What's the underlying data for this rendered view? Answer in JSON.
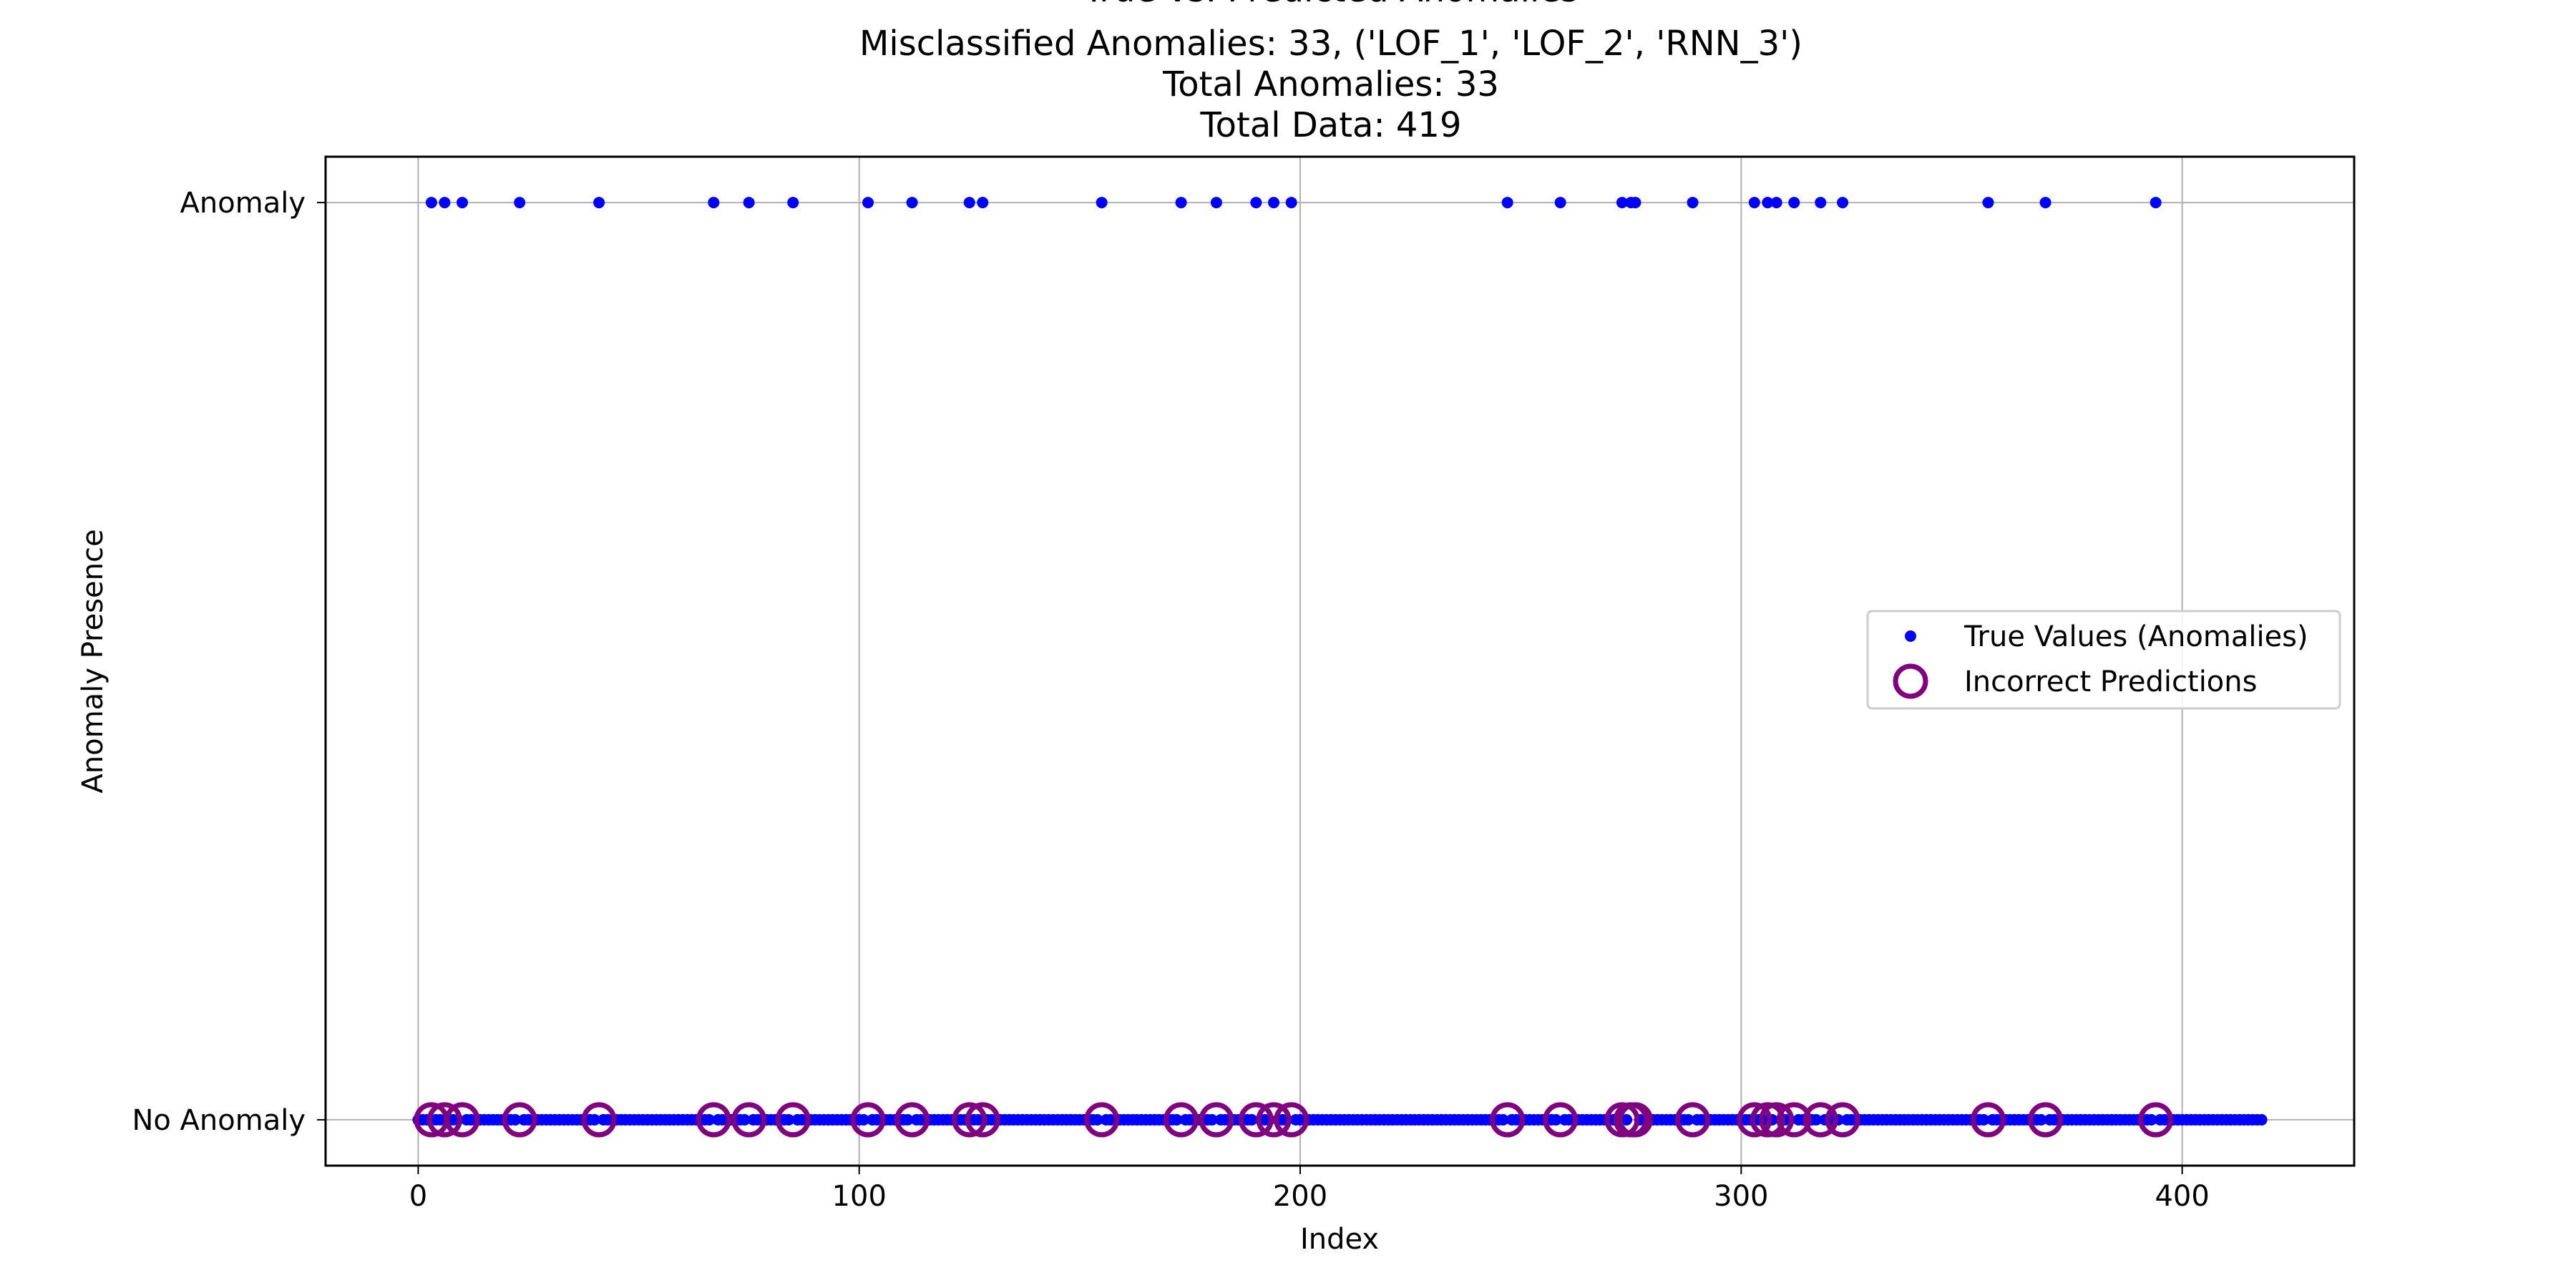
{
  "chart_data": {
    "type": "scatter",
    "title_lines": [
      "True vs. Predicted Anomalies",
      "Misclassified Anomalies: 33, ('LOF_1', 'LOF_2', 'RNN_3')",
      "Total Anomalies: 33",
      "Total Data: 419"
    ],
    "xlabel": "Index",
    "ylabel": "Anomaly Presence",
    "xlim": [
      -21,
      439
    ],
    "ylim": [
      -0.05,
      1.05
    ],
    "xticks": [
      0,
      100,
      200,
      300,
      400
    ],
    "yticks": [
      {
        "value": 0,
        "label": "No Anomaly"
      },
      {
        "value": 1,
        "label": "Anomaly"
      }
    ],
    "grid": true,
    "legend": {
      "placement": "center-right",
      "entries": [
        {
          "label": "True Values (Anomalies)",
          "marker": "dot",
          "color": "#0000ff"
        },
        {
          "label": "Incorrect Predictions",
          "marker": "ring",
          "color": "#800080"
        }
      ]
    },
    "total_points": 419,
    "anomaly_indices": [
      3,
      6,
      10,
      23,
      41,
      67,
      75,
      85,
      102,
      112,
      125,
      128,
      155,
      173,
      181,
      190,
      194,
      198,
      247,
      259,
      273,
      275,
      276,
      289,
      303,
      306,
      308,
      312,
      318,
      323,
      356,
      369,
      394
    ],
    "series": [
      {
        "name": "True Values (Anomalies)",
        "color": "#0000ff",
        "description_rule": "y = 1 at anomaly_indices, y = 0 at every other index 0..418"
      },
      {
        "name": "Incorrect Predictions",
        "color": "#800080",
        "y": 0,
        "x_ref": "anomaly_indices"
      }
    ]
  }
}
